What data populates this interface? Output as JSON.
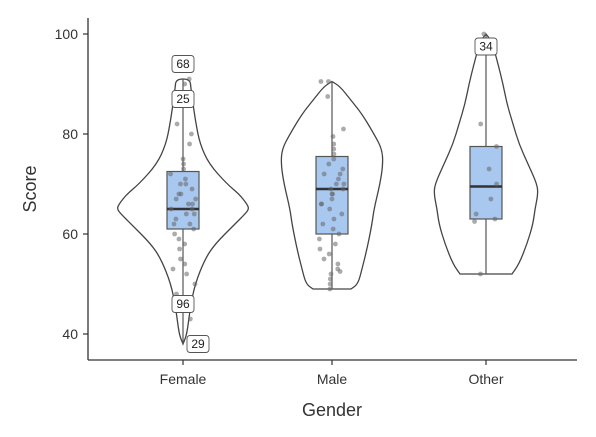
{
  "chart_data": {
    "type": "violin",
    "title": "",
    "xlabel": "Gender",
    "ylabel": "Score",
    "ylim": [
      35,
      103
    ],
    "yticks": [
      40,
      60,
      80,
      100
    ],
    "grid": false,
    "legend": "none",
    "colors": {
      "box_fill": "#a8c8f0",
      "box_stroke": "#555555",
      "violin_stroke": "#444444",
      "point": "#666666"
    },
    "categories": [
      "Female",
      "Male",
      "Other"
    ],
    "groups": [
      {
        "name": "Female",
        "box": {
          "q1": 61,
          "median": 65,
          "q3": 72.5,
          "whisker_low": 38,
          "whisker_high": 91
        },
        "violin": {
          "min": 38,
          "max": 91
        },
        "labels": [
          {
            "text": "68",
            "y": 94
          },
          {
            "text": "25",
            "y": 87
          },
          {
            "text": "96",
            "y": 46
          },
          {
            "text": "29",
            "y": 38
          }
        ],
        "points": [
          91,
          90,
          86,
          82,
          80,
          78,
          75,
          74,
          73,
          72,
          71,
          70,
          70,
          69,
          68,
          68,
          67,
          67,
          66,
          66,
          65,
          65,
          64,
          64,
          63,
          62,
          62,
          61,
          60,
          59,
          58,
          57,
          55,
          54,
          53,
          52,
          50,
          48,
          46,
          43,
          38
        ]
      },
      {
        "name": "Male",
        "box": {
          "q1": 60,
          "median": 69,
          "q3": 75.5,
          "whisker_low": 49,
          "whisker_high": 90.5
        },
        "violin": {
          "min": 49,
          "max": 90.5
        },
        "labels": [],
        "points": [
          90.5,
          90.5,
          87.5,
          81,
          79.5,
          78,
          77,
          76,
          75,
          74,
          73,
          72,
          72,
          71,
          70,
          70,
          69,
          69,
          68,
          68,
          67,
          66,
          66,
          65,
          64,
          63,
          62,
          61,
          60,
          59,
          58,
          57,
          56,
          55,
          54,
          53,
          52.5,
          52,
          51,
          50,
          49
        ]
      },
      {
        "name": "Other",
        "box": {
          "q1": 63,
          "median": 69.5,
          "q3": 77.5,
          "whisker_low": 52,
          "whisker_high": 100
        },
        "violin": {
          "min": 52,
          "max": 100
        },
        "labels": [
          {
            "text": "34",
            "y": 97.5
          }
        ],
        "points": [
          100,
          82,
          77.5,
          73,
          70,
          67,
          64,
          63,
          62.5,
          52
        ]
      }
    ]
  }
}
